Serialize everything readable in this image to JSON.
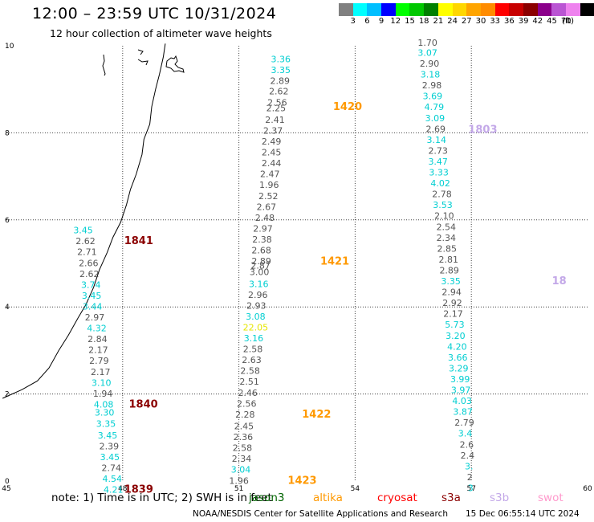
{
  "header": {
    "title": "12:00 – 23:59 UTC 10/31/2024",
    "subtitle": "12 hour collection of altimeter wave heights"
  },
  "color_scale": {
    "swatches": [
      "#808080",
      "#00ffff",
      "#00bfff",
      "#0000ff",
      "#00ff00",
      "#00c800",
      "#008000",
      "#ffff00",
      "#ffd700",
      "#ffa500",
      "#ff8c00",
      "#ff0000",
      "#c80000",
      "#8b0000",
      "#8b008b",
      "#ba55d3",
      "#ee82ee",
      "#000000"
    ],
    "labels": [
      "3",
      "6",
      "9",
      "12",
      "15",
      "18",
      "21",
      "24",
      "27",
      "30",
      "33",
      "36",
      "39",
      "42",
      "45",
      "70"
    ],
    "unit": "(ft)"
  },
  "map": {
    "x_ticks": [
      "45",
      "48",
      "51",
      "54",
      "57",
      "60"
    ],
    "y_ticks": [
      "0",
      "2",
      "4",
      "6",
      "8",
      "10"
    ],
    "colors": {
      "gray": "#555555",
      "cyan": "#00ced1",
      "yellow": "#e6e600",
      "orange": "#ff9900",
      "darkred": "#8b0000",
      "lavender": "#c3a8e8"
    },
    "readings": [
      {
        "x": 52.08,
        "y": 9.62,
        "v": "3.36",
        "c": "cyan"
      },
      {
        "x": 52.08,
        "y": 9.37,
        "v": "3.35",
        "c": "cyan"
      },
      {
        "x": 52.06,
        "y": 9.12,
        "v": "2.89",
        "c": "gray"
      },
      {
        "x": 52.03,
        "y": 8.88,
        "v": "2.62",
        "c": "gray"
      },
      {
        "x": 51.99,
        "y": 8.63,
        "v": "2.56",
        "c": "gray"
      },
      {
        "x": 51.96,
        "y": 8.5,
        "v": "2.25",
        "c": "gray"
      },
      {
        "x": 51.93,
        "y": 8.23,
        "v": "2.41",
        "c": "gray"
      },
      {
        "x": 51.88,
        "y": 7.98,
        "v": "2.37",
        "c": "gray"
      },
      {
        "x": 51.84,
        "y": 7.73,
        "v": "2.49",
        "c": "gray"
      },
      {
        "x": 51.84,
        "y": 7.48,
        "v": "2.45",
        "c": "gray"
      },
      {
        "x": 51.84,
        "y": 7.23,
        "v": "2.44",
        "c": "gray"
      },
      {
        "x": 51.8,
        "y": 6.98,
        "v": "2.47",
        "c": "gray"
      },
      {
        "x": 51.78,
        "y": 6.73,
        "v": "1.96",
        "c": "gray"
      },
      {
        "x": 51.76,
        "y": 6.48,
        "v": "2.52",
        "c": "gray"
      },
      {
        "x": 51.71,
        "y": 6.23,
        "v": "2.67",
        "c": "gray"
      },
      {
        "x": 51.67,
        "y": 5.98,
        "v": "2.48",
        "c": "gray"
      },
      {
        "x": 51.62,
        "y": 5.73,
        "v": "2.97",
        "c": "gray"
      },
      {
        "x": 51.6,
        "y": 5.48,
        "v": "2.38",
        "c": "gray"
      },
      {
        "x": 51.58,
        "y": 5.23,
        "v": "2.68",
        "c": "gray"
      },
      {
        "x": 51.58,
        "y": 4.98,
        "v": "2.89",
        "c": "gray"
      },
      {
        "x": 51.56,
        "y": 4.88,
        "v": "2.87",
        "c": "gray"
      },
      {
        "x": 51.53,
        "y": 4.73,
        "v": "3.00",
        "c": "gray"
      },
      {
        "x": 51.51,
        "y": 4.46,
        "v": "3.16",
        "c": "cyan"
      },
      {
        "x": 51.49,
        "y": 4.21,
        "v": "2.96",
        "c": "gray"
      },
      {
        "x": 51.45,
        "y": 3.96,
        "v": "2.93",
        "c": "gray"
      },
      {
        "x": 51.43,
        "y": 3.71,
        "v": "3.08",
        "c": "cyan"
      },
      {
        "x": 51.43,
        "y": 3.46,
        "v": "22.05",
        "c": "yellow"
      },
      {
        "x": 51.38,
        "y": 3.21,
        "v": "3.16",
        "c": "cyan"
      },
      {
        "x": 51.36,
        "y": 2.96,
        "v": "2.58",
        "c": "gray"
      },
      {
        "x": 51.33,
        "y": 2.71,
        "v": "2.63",
        "c": "gray"
      },
      {
        "x": 51.29,
        "y": 2.46,
        "v": "2.58",
        "c": "gray"
      },
      {
        "x": 51.27,
        "y": 2.21,
        "v": "2.51",
        "c": "gray"
      },
      {
        "x": 51.23,
        "y": 1.96,
        "v": "2.46",
        "c": "gray"
      },
      {
        "x": 51.2,
        "y": 1.71,
        "v": "2.56",
        "c": "gray"
      },
      {
        "x": 51.16,
        "y": 1.46,
        "v": "2.28",
        "c": "gray"
      },
      {
        "x": 51.13,
        "y": 1.19,
        "v": "2.45",
        "c": "gray"
      },
      {
        "x": 51.11,
        "y": 0.94,
        "v": "2.36",
        "c": "gray"
      },
      {
        "x": 51.09,
        "y": 0.69,
        "v": "2.58",
        "c": "gray"
      },
      {
        "x": 51.07,
        "y": 0.44,
        "v": "2.34",
        "c": "gray"
      },
      {
        "x": 51.05,
        "y": 0.19,
        "v": "3.04",
        "c": "cyan"
      },
      {
        "x": 51.0,
        "y": -0.06,
        "v": "1.96",
        "c": "gray"
      },
      {
        "x": 46.98,
        "y": 5.69,
        "v": "3.45",
        "c": "cyan"
      },
      {
        "x": 47.04,
        "y": 5.44,
        "v": "2.62",
        "c": "gray"
      },
      {
        "x": 47.08,
        "y": 5.19,
        "v": "2.71",
        "c": "gray"
      },
      {
        "x": 47.12,
        "y": 4.94,
        "v": "2.66",
        "c": "gray"
      },
      {
        "x": 47.14,
        "y": 4.69,
        "v": "2.62",
        "c": "gray"
      },
      {
        "x": 47.18,
        "y": 4.44,
        "v": "3.74",
        "c": "cyan"
      },
      {
        "x": 47.2,
        "y": 4.19,
        "v": "3.45",
        "c": "cyan"
      },
      {
        "x": 47.22,
        "y": 3.94,
        "v": "3.44",
        "c": "cyan"
      },
      {
        "x": 47.28,
        "y": 3.69,
        "v": "2.97",
        "c": "gray"
      },
      {
        "x": 47.33,
        "y": 3.44,
        "v": "4.32",
        "c": "cyan"
      },
      {
        "x": 47.35,
        "y": 3.19,
        "v": "2.84",
        "c": "gray"
      },
      {
        "x": 47.37,
        "y": 2.94,
        "v": "2.17",
        "c": "gray"
      },
      {
        "x": 47.39,
        "y": 2.69,
        "v": "2.79",
        "c": "gray"
      },
      {
        "x": 47.43,
        "y": 2.44,
        "v": "2.17",
        "c": "gray"
      },
      {
        "x": 47.45,
        "y": 2.19,
        "v": "3.10",
        "c": "cyan"
      },
      {
        "x": 47.49,
        "y": 1.94,
        "v": "1.94",
        "c": "gray"
      },
      {
        "x": 47.51,
        "y": 1.69,
        "v": "4.08",
        "c": "cyan"
      },
      {
        "x": 47.53,
        "y": 1.5,
        "v": "3.30",
        "c": "cyan"
      },
      {
        "x": 47.57,
        "y": 1.25,
        "v": "3.35",
        "c": "cyan"
      },
      {
        "x": 47.61,
        "y": 0.98,
        "v": "3.45",
        "c": "cyan"
      },
      {
        "x": 47.65,
        "y": 0.73,
        "v": "2.39",
        "c": "gray"
      },
      {
        "x": 47.67,
        "y": 0.48,
        "v": "3.45",
        "c": "cyan"
      },
      {
        "x": 47.71,
        "y": 0.23,
        "v": "2.74",
        "c": "gray"
      },
      {
        "x": 47.73,
        "y": -0.02,
        "v": "4.54",
        "c": "cyan"
      },
      {
        "x": 47.76,
        "y": -0.27,
        "v": "4.21",
        "c": "cyan"
      },
      {
        "x": 55.87,
        "y": 10.0,
        "v": "1.70",
        "c": "gray"
      },
      {
        "x": 55.87,
        "y": 9.77,
        "v": "3.07",
        "c": "cyan"
      },
      {
        "x": 55.92,
        "y": 9.52,
        "v": "2.90",
        "c": "gray"
      },
      {
        "x": 55.94,
        "y": 9.27,
        "v": "3.18",
        "c": "cyan"
      },
      {
        "x": 55.98,
        "y": 9.02,
        "v": "2.98",
        "c": "gray"
      },
      {
        "x": 56.0,
        "y": 8.77,
        "v": "3.69",
        "c": "cyan"
      },
      {
        "x": 56.04,
        "y": 8.52,
        "v": "4.79",
        "c": "cyan"
      },
      {
        "x": 56.06,
        "y": 8.27,
        "v": "3.09",
        "c": "cyan"
      },
      {
        "x": 56.08,
        "y": 8.02,
        "v": "2.69",
        "c": "gray"
      },
      {
        "x": 56.1,
        "y": 7.77,
        "v": "3.14",
        "c": "cyan"
      },
      {
        "x": 56.14,
        "y": 7.52,
        "v": "2.73",
        "c": "gray"
      },
      {
        "x": 56.14,
        "y": 7.27,
        "v": "3.47",
        "c": "cyan"
      },
      {
        "x": 56.16,
        "y": 7.02,
        "v": "3.33",
        "c": "cyan"
      },
      {
        "x": 56.2,
        "y": 6.77,
        "v": "4.02",
        "c": "cyan"
      },
      {
        "x": 56.24,
        "y": 6.52,
        "v": "2.78",
        "c": "gray"
      },
      {
        "x": 56.26,
        "y": 6.27,
        "v": "3.53",
        "c": "cyan"
      },
      {
        "x": 56.3,
        "y": 6.02,
        "v": "2.10",
        "c": "gray"
      },
      {
        "x": 56.35,
        "y": 5.77,
        "v": "2.54",
        "c": "gray"
      },
      {
        "x": 56.35,
        "y": 5.52,
        "v": "2.34",
        "c": "gray"
      },
      {
        "x": 56.37,
        "y": 5.27,
        "v": "2.85",
        "c": "gray"
      },
      {
        "x": 56.41,
        "y": 5.02,
        "v": "2.81",
        "c": "gray"
      },
      {
        "x": 56.43,
        "y": 4.77,
        "v": "2.89",
        "c": "gray"
      },
      {
        "x": 56.47,
        "y": 4.52,
        "v": "3.35",
        "c": "cyan"
      },
      {
        "x": 56.49,
        "y": 4.27,
        "v": "2.94",
        "c": "gray"
      },
      {
        "x": 56.51,
        "y": 4.02,
        "v": "2.92",
        "c": "gray"
      },
      {
        "x": 56.53,
        "y": 3.77,
        "v": "2.17",
        "c": "gray"
      },
      {
        "x": 56.57,
        "y": 3.52,
        "v": "5.73",
        "c": "cyan"
      },
      {
        "x": 56.59,
        "y": 3.27,
        "v": "3.20",
        "c": "cyan"
      },
      {
        "x": 56.63,
        "y": 3.02,
        "v": "4.20",
        "c": "cyan"
      },
      {
        "x": 56.65,
        "y": 2.77,
        "v": "3.66",
        "c": "cyan"
      },
      {
        "x": 56.67,
        "y": 2.52,
        "v": "3.29",
        "c": "cyan"
      },
      {
        "x": 56.71,
        "y": 2.27,
        "v": "3.99",
        "c": "cyan"
      },
      {
        "x": 56.73,
        "y": 2.02,
        "v": "3.97",
        "c": "cyan"
      },
      {
        "x": 56.76,
        "y": 1.77,
        "v": "4.03",
        "c": "cyan"
      },
      {
        "x": 56.78,
        "y": 1.52,
        "v": "3.87",
        "c": "cyan"
      },
      {
        "x": 56.82,
        "y": 1.27,
        "v": "2.79",
        "c": "gray"
      },
      {
        "x": 56.84,
        "y": 1.02,
        "v": "3.4",
        "c": "cyan"
      },
      {
        "x": 56.88,
        "y": 0.77,
        "v": "2.6",
        "c": "gray"
      },
      {
        "x": 56.9,
        "y": 0.52,
        "v": "2.4",
        "c": "gray"
      },
      {
        "x": 56.94,
        "y": 0.27,
        "v": "3.",
        "c": "cyan"
      },
      {
        "x": 56.96,
        "y": 0.02,
        "v": "2",
        "c": "gray"
      },
      {
        "x": 56.98,
        "y": -0.23,
        "v": "3",
        "c": "cyan"
      }
    ],
    "passes": [
      {
        "x": 53.43,
        "y": 8.52,
        "t": "1420",
        "c": "orange"
      },
      {
        "x": 53.1,
        "y": 4.97,
        "t": "1421",
        "c": "orange"
      },
      {
        "x": 52.63,
        "y": 1.46,
        "t": "1422",
        "c": "orange"
      },
      {
        "x": 52.26,
        "y": -0.06,
        "t": "1423",
        "c": "orange"
      },
      {
        "x": 56.92,
        "y": 8.0,
        "t": "1803",
        "c": "lavender"
      },
      {
        "x": 59.08,
        "y": 4.52,
        "t": "18",
        "c": "lavender"
      },
      {
        "x": 48.04,
        "y": 5.44,
        "t": "1841",
        "c": "darkred"
      },
      {
        "x": 48.16,
        "y": 1.69,
        "t": "1840",
        "c": "darkred"
      },
      {
        "x": 48.04,
        "y": -0.27,
        "t": "1839",
        "c": "darkred"
      }
    ],
    "coastline": [
      [
        44.9,
        1.9
      ],
      [
        45.4,
        2.1
      ],
      [
        45.8,
        2.3
      ],
      [
        46.1,
        2.6
      ],
      [
        46.35,
        3.0
      ],
      [
        46.6,
        3.35
      ],
      [
        46.85,
        3.75
      ],
      [
        47.05,
        4.05
      ],
      [
        47.25,
        4.45
      ],
      [
        47.4,
        4.85
      ],
      [
        47.6,
        5.25
      ],
      [
        47.75,
        5.6
      ],
      [
        47.95,
        5.95
      ],
      [
        48.1,
        6.35
      ],
      [
        48.2,
        6.7
      ],
      [
        48.35,
        7.05
      ],
      [
        48.5,
        7.5
      ],
      [
        48.55,
        7.85
      ],
      [
        48.7,
        8.2
      ],
      [
        48.75,
        8.6
      ],
      [
        48.85,
        9.0
      ],
      [
        48.95,
        9.35
      ],
      [
        49.05,
        9.75
      ],
      [
        49.1,
        10.05
      ]
    ]
  },
  "footer": {
    "note": "note:  1) Time is in UTC;  2) SWH is in feet",
    "legend": [
      {
        "label": "jason3",
        "color": "#006400"
      },
      {
        "label": "altika",
        "color": "#ff9900"
      },
      {
        "label": "cryosat",
        "color": "#ff0000"
      },
      {
        "label": "s3a",
        "color": "#8b0000"
      },
      {
        "label": "s3b",
        "color": "#c3a8e8"
      },
      {
        "label": "swot",
        "color": "#ff99cc"
      }
    ],
    "credit": "NOAA/NESDIS Center for Satellite Applications and Research",
    "timestamp": "15 Dec 06:55:14 UTC 2024"
  }
}
